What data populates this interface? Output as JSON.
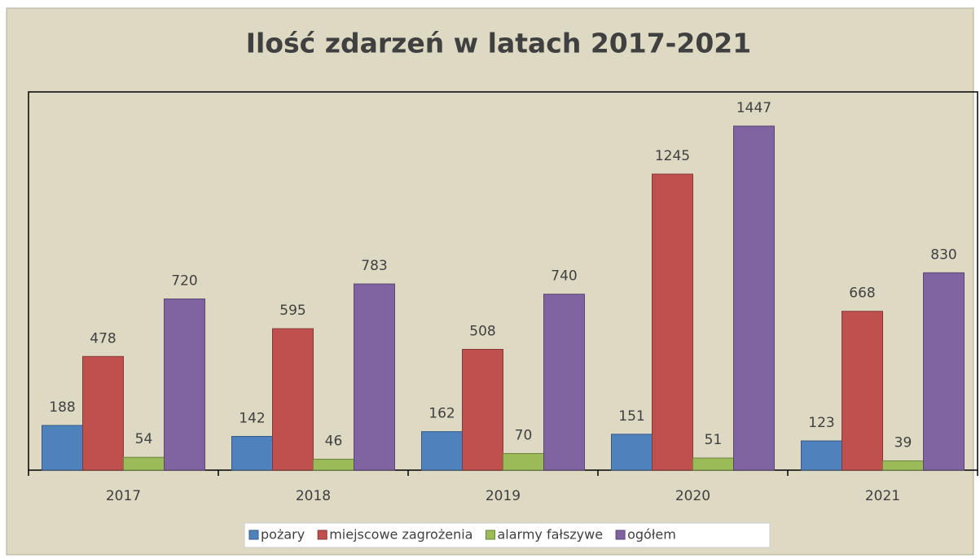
{
  "chart_data": {
    "type": "bar",
    "title": "Ilość zdarzeń w latach 2017-2021",
    "categories": [
      "2017",
      "2018",
      "2019",
      "2020",
      "2021"
    ],
    "series": [
      {
        "name": "pożary",
        "color": "#4f81bd",
        "values": [
          188,
          142,
          162,
          151,
          123
        ]
      },
      {
        "name": "miejscowe zagrożenia",
        "color": "#c0504d",
        "values": [
          478,
          595,
          508,
          1245,
          668
        ]
      },
      {
        "name": "alarmy fałszywe",
        "color": "#9bbb59",
        "values": [
          54,
          46,
          70,
          51,
          39
        ]
      },
      {
        "name": "ogółem",
        "color": "#8064a2",
        "values": [
          720,
          783,
          740,
          1447,
          830
        ]
      }
    ],
    "legend": "bottom"
  }
}
